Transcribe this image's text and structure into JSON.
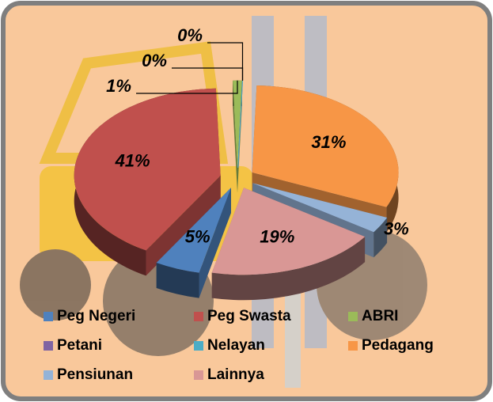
{
  "chart_data": {
    "type": "pie",
    "categories": [
      "Peg Negeri",
      "Peg Swasta",
      "ABRI",
      "Petani",
      "Nelayan",
      "Pedagang",
      "Pensiunan",
      "Lainnya"
    ],
    "values": [
      5,
      41,
      1,
      0,
      0,
      31,
      3,
      19
    ],
    "value_labels": [
      "5%",
      "41%",
      "1%",
      "0%",
      "0%",
      "31%",
      "3%",
      "19%"
    ],
    "colors": [
      "#4f81bd",
      "#c0504d",
      "#9bbb59",
      "#8064a2",
      "#4bacc6",
      "#f79646",
      "#95b3d7",
      "#d99795"
    ],
    "legend": "bottom"
  }
}
